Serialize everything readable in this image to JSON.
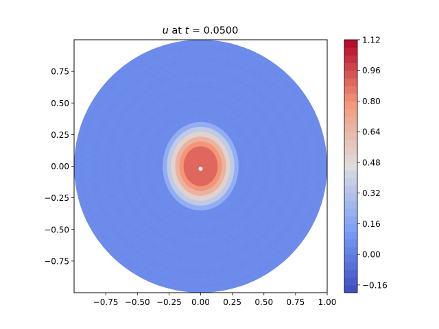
{
  "chart_data": {
    "type": "heatmap",
    "title_prefix": "u",
    "title_middle": " at ",
    "title_t": "t",
    "title_eq": " = 0.0500",
    "xlabel": "",
    "ylabel": "",
    "xlim": [
      -1.0,
      1.0
    ],
    "ylim": [
      -1.0,
      1.0
    ],
    "x_ticks": [
      -0.75,
      -0.5,
      -0.25,
      0.0,
      0.25,
      0.5,
      0.75,
      1.0
    ],
    "x_tick_labels": [
      "−0.75",
      "−0.50",
      "−0.25",
      "0.00",
      "0.25",
      "0.50",
      "0.75",
      "1.00"
    ],
    "y_ticks": [
      0.75,
      0.5,
      0.25,
      0.0,
      -0.25,
      -0.5,
      -0.75
    ],
    "y_tick_labels": [
      "0.75",
      "0.50",
      "0.25",
      "0.00",
      "−0.25",
      "−0.50",
      "−0.75"
    ],
    "domain": "disk",
    "domain_radius": 1.0,
    "background_value": 0.05,
    "hot_region": {
      "center": [
        0.0,
        0.0
      ],
      "radius_x": 0.3,
      "radius_y": 0.35,
      "peak_value": 0.9
    },
    "colormap": "coolwarm",
    "colorbar": {
      "min": -0.2,
      "max": 1.12,
      "levels": 33,
      "ticks": [
        1.12,
        0.96,
        0.8,
        0.64,
        0.48,
        0.32,
        0.16,
        0.0,
        -0.16
      ],
      "tick_labels": [
        "1.12",
        "0.96",
        "0.80",
        "0.64",
        "0.48",
        "0.32",
        "0.16",
        "0.00",
        "−0.16"
      ]
    },
    "grid": false,
    "legend": "none"
  }
}
